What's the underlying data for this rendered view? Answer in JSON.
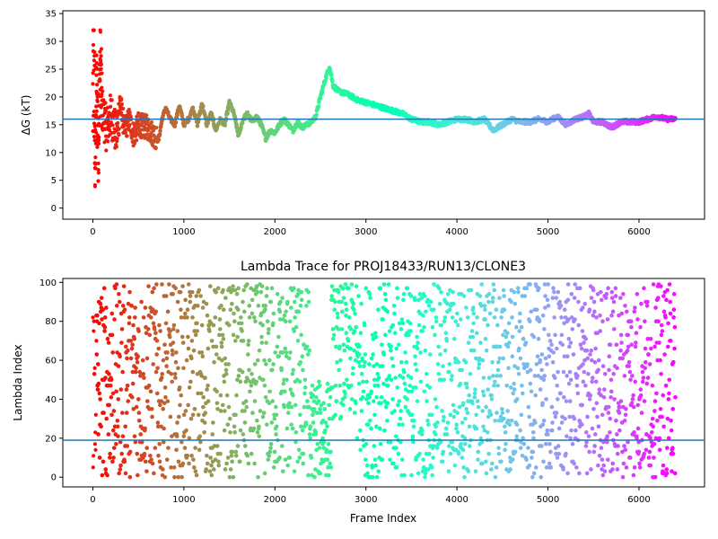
{
  "chart_data": [
    {
      "type": "scatter",
      "title": "",
      "xlabel": "",
      "ylabel": "ΔG (kT)",
      "xlim": [
        -330,
        6720
      ],
      "ylim": [
        -2.0,
        35.5
      ],
      "xticks": [
        0,
        1000,
        2000,
        3000,
        4000,
        5000,
        6000
      ],
      "xtick_labels": [
        "0",
        "1000",
        "2000",
        "3000",
        "4000",
        "5000",
        "6000"
      ],
      "yticks": [
        0,
        5,
        10,
        15,
        20,
        25,
        30,
        35
      ],
      "ytick_labels": [
        "0",
        "5",
        "10",
        "15",
        "20",
        "25",
        "30",
        "35"
      ],
      "reference_line": 16.0,
      "colormap": "rainbow (red at frame 0 to violet at last frame)",
      "series": [
        {
          "values_trend": [
            [
              0,
              18
            ],
            [
              10,
              31
            ],
            [
              25,
              6
            ],
            [
              40,
              22
            ],
            [
              60,
              12
            ],
            [
              80,
              27
            ],
            [
              100,
              18
            ],
            [
              150,
              14
            ],
            [
              200,
              17
            ],
            [
              260,
              13
            ],
            [
              300,
              19
            ],
            [
              350,
              14
            ],
            [
              400,
              16
            ],
            [
              450,
              13
            ],
            [
              500,
              15
            ],
            [
              600,
              14.5
            ],
            [
              680,
              13
            ],
            [
              720,
              12
            ],
            [
              760,
              16
            ],
            [
              800,
              18
            ],
            [
              850,
              16
            ],
            [
              900,
              15
            ],
            [
              950,
              18.5
            ],
            [
              1000,
              15
            ],
            [
              1050,
              16
            ],
            [
              1100,
              18
            ],
            [
              1150,
              15
            ],
            [
              1200,
              19
            ],
            [
              1250,
              15
            ],
            [
              1300,
              17
            ],
            [
              1350,
              14
            ],
            [
              1400,
              16
            ],
            [
              1450,
              15
            ],
            [
              1500,
              19
            ],
            [
              1550,
              17
            ],
            [
              1600,
              13
            ],
            [
              1650,
              16
            ],
            [
              1700,
              17
            ],
            [
              1750,
              15.5
            ],
            [
              1800,
              16.5
            ],
            [
              1850,
              15
            ],
            [
              1900,
              12.5
            ],
            [
              1950,
              14
            ],
            [
              2000,
              13.5
            ],
            [
              2050,
              15
            ],
            [
              2100,
              16
            ],
            [
              2150,
              15
            ],
            [
              2200,
              14
            ],
            [
              2250,
              15.5
            ],
            [
              2300,
              14.5
            ],
            [
              2350,
              15
            ],
            [
              2400,
              15.5
            ],
            [
              2450,
              16.5
            ],
            [
              2500,
              20
            ],
            [
              2550,
              23
            ],
            [
              2600,
              25.5
            ],
            [
              2640,
              22
            ],
            [
              2700,
              21
            ],
            [
              2800,
              20.5
            ],
            [
              2900,
              19.5
            ],
            [
              3000,
              19
            ],
            [
              3100,
              18.5
            ],
            [
              3200,
              18
            ],
            [
              3300,
              17.5
            ],
            [
              3400,
              17
            ],
            [
              3500,
              16
            ],
            [
              3600,
              15.5
            ],
            [
              3700,
              15.5
            ],
            [
              3800,
              15
            ],
            [
              3900,
              15.5
            ],
            [
              4000,
              16
            ],
            [
              4100,
              16
            ],
            [
              4200,
              15.5
            ],
            [
              4300,
              16
            ],
            [
              4400,
              14
            ],
            [
              4500,
              15
            ],
            [
              4600,
              16
            ],
            [
              4700,
              15.5
            ],
            [
              4800,
              15.5
            ],
            [
              4900,
              16
            ],
            [
              5000,
              15.5
            ],
            [
              5100,
              16.5
            ],
            [
              5200,
              15
            ],
            [
              5300,
              16
            ],
            [
              5400,
              16.5
            ],
            [
              5450,
              17
            ],
            [
              5500,
              15.5
            ],
            [
              5600,
              15.5
            ],
            [
              5700,
              14.5
            ],
            [
              5800,
              15.5
            ],
            [
              5900,
              15.5
            ],
            [
              6000,
              15.5
            ],
            [
              6100,
              16
            ],
            [
              6200,
              16.5
            ],
            [
              6300,
              16
            ],
            [
              6400,
              16
            ]
          ]
        }
      ]
    },
    {
      "type": "scatter",
      "title": "Lambda Trace for PROJ18433/RUN13/CLONE3",
      "xlabel": "Frame Index",
      "ylabel": "Lambda Index",
      "xlim": [
        -330,
        6720
      ],
      "ylim": [
        -5,
        102
      ],
      "xticks": [
        0,
        1000,
        2000,
        3000,
        4000,
        5000,
        6000
      ],
      "xtick_labels": [
        "0",
        "1000",
        "2000",
        "3000",
        "4000",
        "5000",
        "6000"
      ],
      "yticks": [
        0,
        20,
        40,
        60,
        80,
        100
      ],
      "ytick_labels": [
        "0",
        "20",
        "40",
        "60",
        "80",
        "100"
      ],
      "reference_line": 19,
      "colormap": "rainbow (red at frame 0 to violet at last frame)",
      "x_range": [
        0,
        6400
      ],
      "y_range": [
        0,
        99
      ]
    }
  ]
}
